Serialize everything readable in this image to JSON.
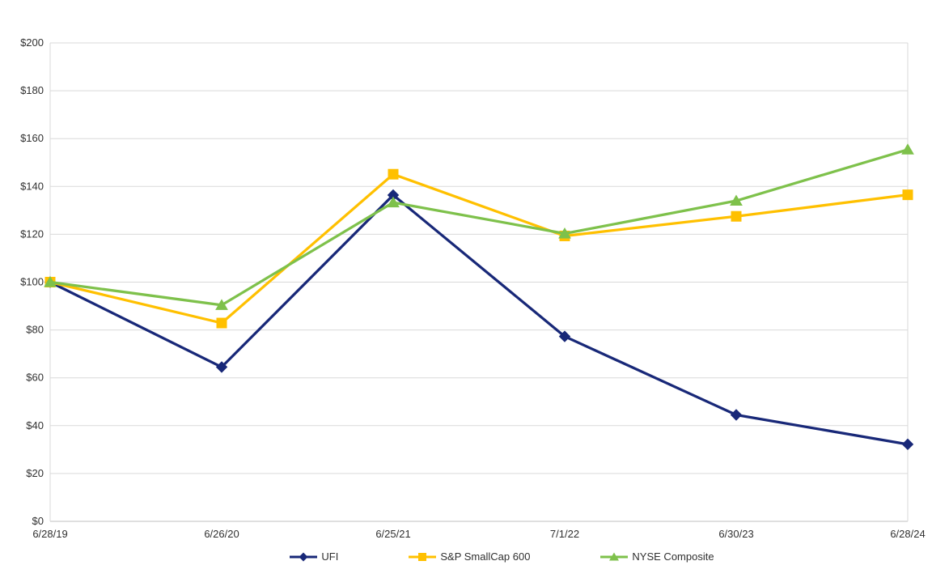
{
  "chart_data": {
    "type": "line",
    "title": "",
    "categories": [
      "6/28/19",
      "6/26/20",
      "6/25/21",
      "7/1/22",
      "6/30/23",
      "6/28/24"
    ],
    "series": [
      {
        "name": "UFI",
        "color": "#182878",
        "marker": "diamond",
        "values": [
          100,
          64.5,
          136.4,
          77.3,
          44.5,
          32.2
        ]
      },
      {
        "name": "S&P SmallCap 600",
        "color": "#FFC000",
        "marker": "square",
        "values": [
          100,
          82.9,
          145.1,
          119.3,
          127.5,
          136.5
        ]
      },
      {
        "name": "NYSE Composite",
        "color": "#7EC14B",
        "marker": "triangle",
        "values": [
          100,
          90.4,
          133.3,
          120.3,
          134.0,
          155.4
        ]
      }
    ],
    "ylim": [
      0,
      200
    ],
    "ytick_step": 20,
    "ytick_prefix": "$",
    "xlabel": "",
    "ylabel": "",
    "grid": true,
    "legend_position": "bottom"
  },
  "colors": {
    "background": "#FFFFFF",
    "gridline": "#D9D9D9",
    "axis_line": "#BFBFBF",
    "tick_text": "#303030"
  }
}
